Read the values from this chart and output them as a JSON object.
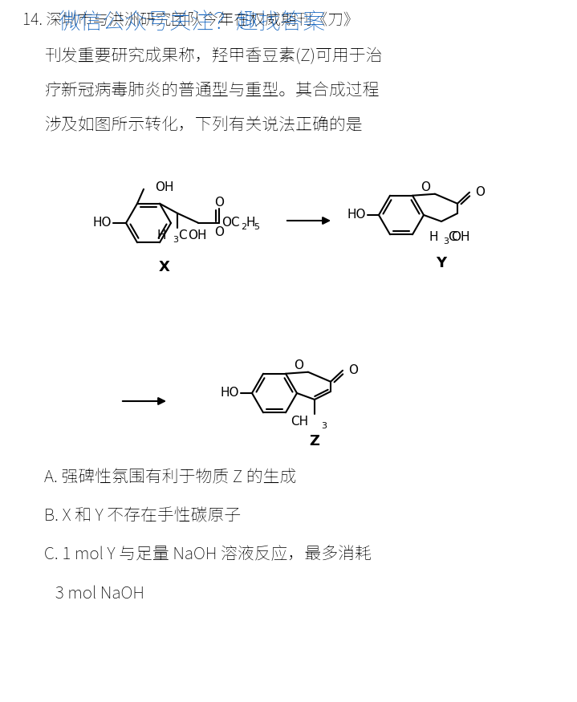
{
  "bg_color": "#ffffff",
  "text_color": "#000000",
  "overlay_color": "#1565c0",
  "line1": "14. 深圳市与洪洲研究团队今年在权威期刊《刀》",
  "overlay_text": "微信公众号关注？趣找答案",
  "line2": "刊发重要研究成果称，羟甲香豆素(Z)可用于治",
  "line3": "疗新冠病毒肺炎的普通型与重型。其合成过程",
  "line4": "涉及如图所示转化，下列有关说法正确的是",
  "optA": "A. 强碑性氛围有利于物质 Z 的生成",
  "optB": "B. X 和 Y 不存在手性碳原子",
  "optC": "C. 1 mol Y 与足量 NaOH 溶液反应，最多消耗",
  "optC2": "   3 mol NaOH"
}
